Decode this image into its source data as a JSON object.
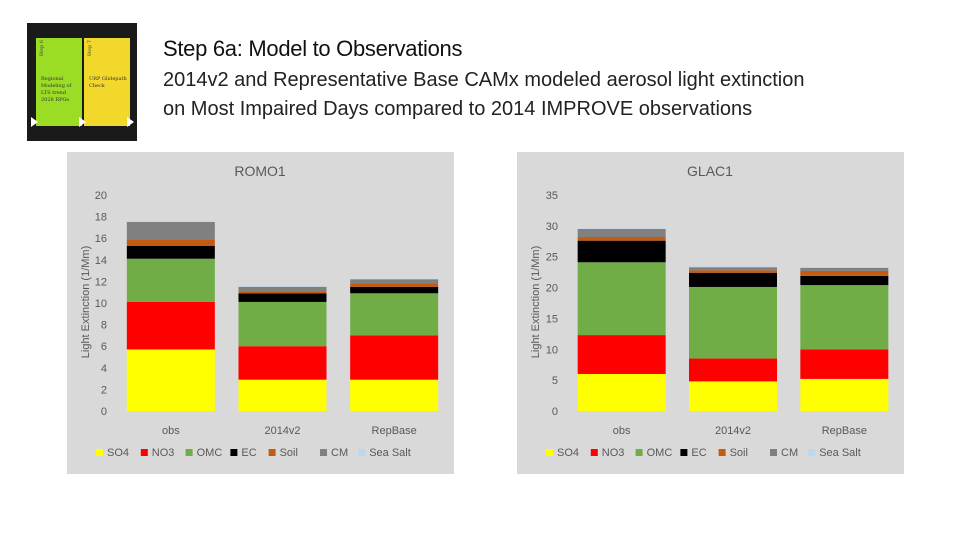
{
  "thumbnail": {
    "cards": [
      {
        "step": "Step 6",
        "text": "Regional Modeling of LTS trend 2028 RPGs"
      },
      {
        "step": "Step 7",
        "text": "URP Glidepath Check"
      }
    ]
  },
  "slide": {
    "title": "Step 6a: Model to Observations",
    "subtitle_lines": [
      "2014v2 and Representative Base CAMx modeled aerosol light extinction",
      "on Most Impaired Days compared to 2014 IMPROVE observations"
    ]
  },
  "colors": {
    "SO4": "#ffff00",
    "NO3": "#ff0000",
    "OMC": "#70ad47",
    "EC": "#000000",
    "Soil": "#c55a11",
    "CM": "#808080",
    "Sea Salt": "#bdd7ee"
  },
  "chart_data": [
    {
      "type": "bar",
      "stacked": true,
      "title": "ROMO1",
      "ylabel": "Light Extinction (1/Mm)",
      "ylim": [
        0,
        20
      ],
      "yticks": [
        0,
        2,
        4,
        6,
        8,
        10,
        12,
        14,
        16,
        18,
        20
      ],
      "categories": [
        "obs",
        "2014v2",
        "RepBase"
      ],
      "legend_position": "bottom",
      "series": [
        {
          "name": "SO4",
          "values": [
            5.7,
            2.9,
            2.9
          ]
        },
        {
          "name": "NO3",
          "values": [
            4.4,
            3.1,
            4.1
          ]
        },
        {
          "name": "OMC",
          "values": [
            4.0,
            4.1,
            3.9
          ]
        },
        {
          "name": "EC",
          "values": [
            1.2,
            0.8,
            0.6
          ]
        },
        {
          "name": "Soil",
          "values": [
            0.6,
            0.2,
            0.3
          ]
        },
        {
          "name": "CM",
          "values": [
            1.6,
            0.4,
            0.4
          ]
        },
        {
          "name": "Sea Salt",
          "values": [
            0.05,
            0.05,
            0.05
          ]
        }
      ]
    },
    {
      "type": "bar",
      "stacked": true,
      "title": "GLAC1",
      "ylabel": "Light Extinction (1/Mm)",
      "ylim": [
        0,
        35
      ],
      "yticks": [
        0,
        5,
        10,
        15,
        20,
        25,
        30,
        35
      ],
      "categories": [
        "obs",
        "2014v2",
        "RepBase"
      ],
      "legend_position": "bottom",
      "series": [
        {
          "name": "SO4",
          "values": [
            6.0,
            4.8,
            5.2
          ]
        },
        {
          "name": "NO3",
          "values": [
            6.3,
            3.7,
            4.8
          ]
        },
        {
          "name": "OMC",
          "values": [
            11.8,
            11.6,
            10.4
          ]
        },
        {
          "name": "EC",
          "values": [
            3.5,
            2.3,
            1.5
          ]
        },
        {
          "name": "Soil",
          "values": [
            0.6,
            0.4,
            0.8
          ]
        },
        {
          "name": "CM",
          "values": [
            1.3,
            0.5,
            0.5
          ]
        },
        {
          "name": "Sea Salt",
          "values": [
            0.1,
            0.1,
            0.1
          ]
        }
      ]
    }
  ]
}
